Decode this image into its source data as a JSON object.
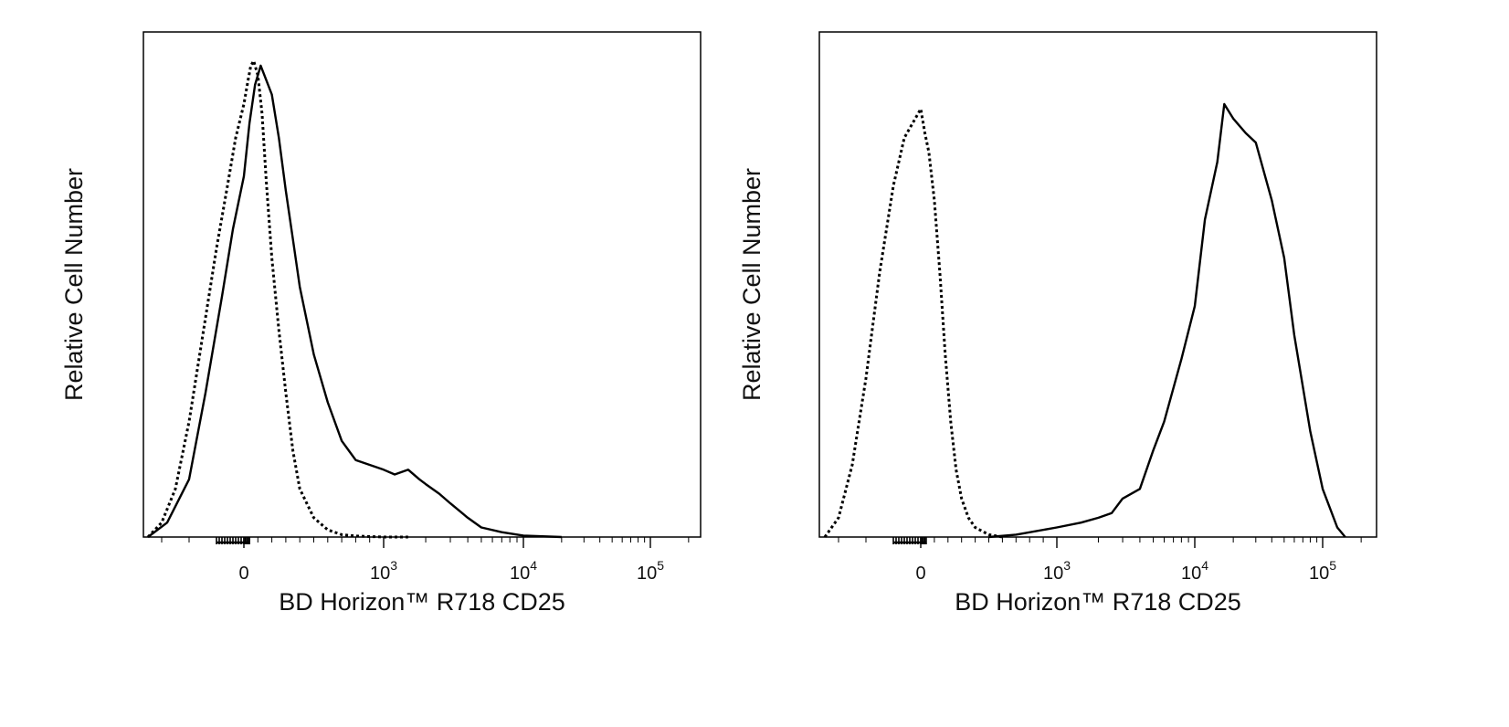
{
  "chart_data": [
    {
      "type": "line",
      "title": "",
      "xlabel": "BD Horizon™ R718 CD25",
      "ylabel": "Relative Cell Number",
      "x_scale": "biexponential",
      "x_ticks": [
        {
          "value": 0,
          "label": "0"
        },
        {
          "value": 1000,
          "base": "10",
          "exp": "3"
        },
        {
          "value": 10000,
          "base": "10",
          "exp": "4"
        },
        {
          "value": 100000,
          "base": "10",
          "exp": "5"
        }
      ],
      "grid": false,
      "legend": "none",
      "series": [
        {
          "style": "dotted",
          "x": [
            -350,
            -300,
            -250,
            -200,
            -150,
            -100,
            -60,
            -30,
            0,
            30,
            50,
            70,
            100,
            130,
            160,
            200,
            250,
            300,
            350,
            400,
            500,
            600,
            700,
            800,
            1000,
            1500
          ],
          "y": [
            0,
            3,
            10,
            24,
            42,
            60,
            73,
            83,
            90,
            95,
            98,
            99,
            96,
            88,
            74,
            58,
            43,
            30,
            18,
            10,
            4,
            1.5,
            0.5,
            0.2,
            0,
            0
          ]
        },
        {
          "style": "solid",
          "x": [
            -350,
            -280,
            -200,
            -140,
            -80,
            -40,
            0,
            40,
            80,
            120,
            160,
            200,
            250,
            300,
            350,
            400,
            500,
            600,
            700,
            800,
            1000,
            1200,
            1500,
            1800,
            2000,
            2500,
            3000,
            4000,
            5000,
            7000,
            10000,
            20000
          ],
          "y": [
            0,
            3,
            12,
            30,
            50,
            64,
            75,
            86,
            94,
            98,
            95,
            92,
            83,
            72,
            62,
            52,
            38,
            28,
            20,
            16,
            14,
            13,
            14,
            12,
            11,
            9,
            7,
            4,
            2,
            1,
            0.3,
            0
          ]
        }
      ]
    },
    {
      "type": "line",
      "title": "",
      "xlabel": "BD Horizon™ R718 CD25",
      "ylabel": "Relative Cell Number",
      "x_scale": "biexponential",
      "x_ticks": [
        {
          "value": 0,
          "label": "0"
        },
        {
          "value": 1000,
          "base": "10",
          "exp": "3"
        },
        {
          "value": 10000,
          "base": "10",
          "exp": "4"
        },
        {
          "value": 100000,
          "base": "10",
          "exp": "5"
        }
      ],
      "grid": false,
      "legend": "none",
      "series": [
        {
          "style": "dotted",
          "x": [
            -350,
            -300,
            -250,
            -200,
            -150,
            -100,
            -60,
            -30,
            0,
            30,
            60,
            100,
            140,
            180,
            220,
            260,
            300,
            350,
            400,
            500,
            600
          ],
          "y": [
            0,
            4,
            15,
            33,
            55,
            73,
            83,
            86,
            89,
            84,
            80,
            70,
            55,
            38,
            24,
            14,
            8,
            4,
            2,
            0.5,
            0
          ]
        },
        {
          "style": "solid",
          "x": [
            500,
            700,
            1000,
            1500,
            2000,
            2500,
            3000,
            4000,
            5000,
            6000,
            8000,
            10000,
            12000,
            15000,
            17000,
            20000,
            25000,
            30000,
            40000,
            50000,
            60000,
            80000,
            100000,
            130000,
            150000
          ],
          "y": [
            0,
            0.5,
            2,
            3,
            4,
            5,
            8,
            10,
            18,
            24,
            37,
            48,
            66,
            78,
            90,
            87,
            84,
            82,
            70,
            58,
            42,
            22,
            10,
            2,
            0
          ]
        }
      ]
    }
  ]
}
